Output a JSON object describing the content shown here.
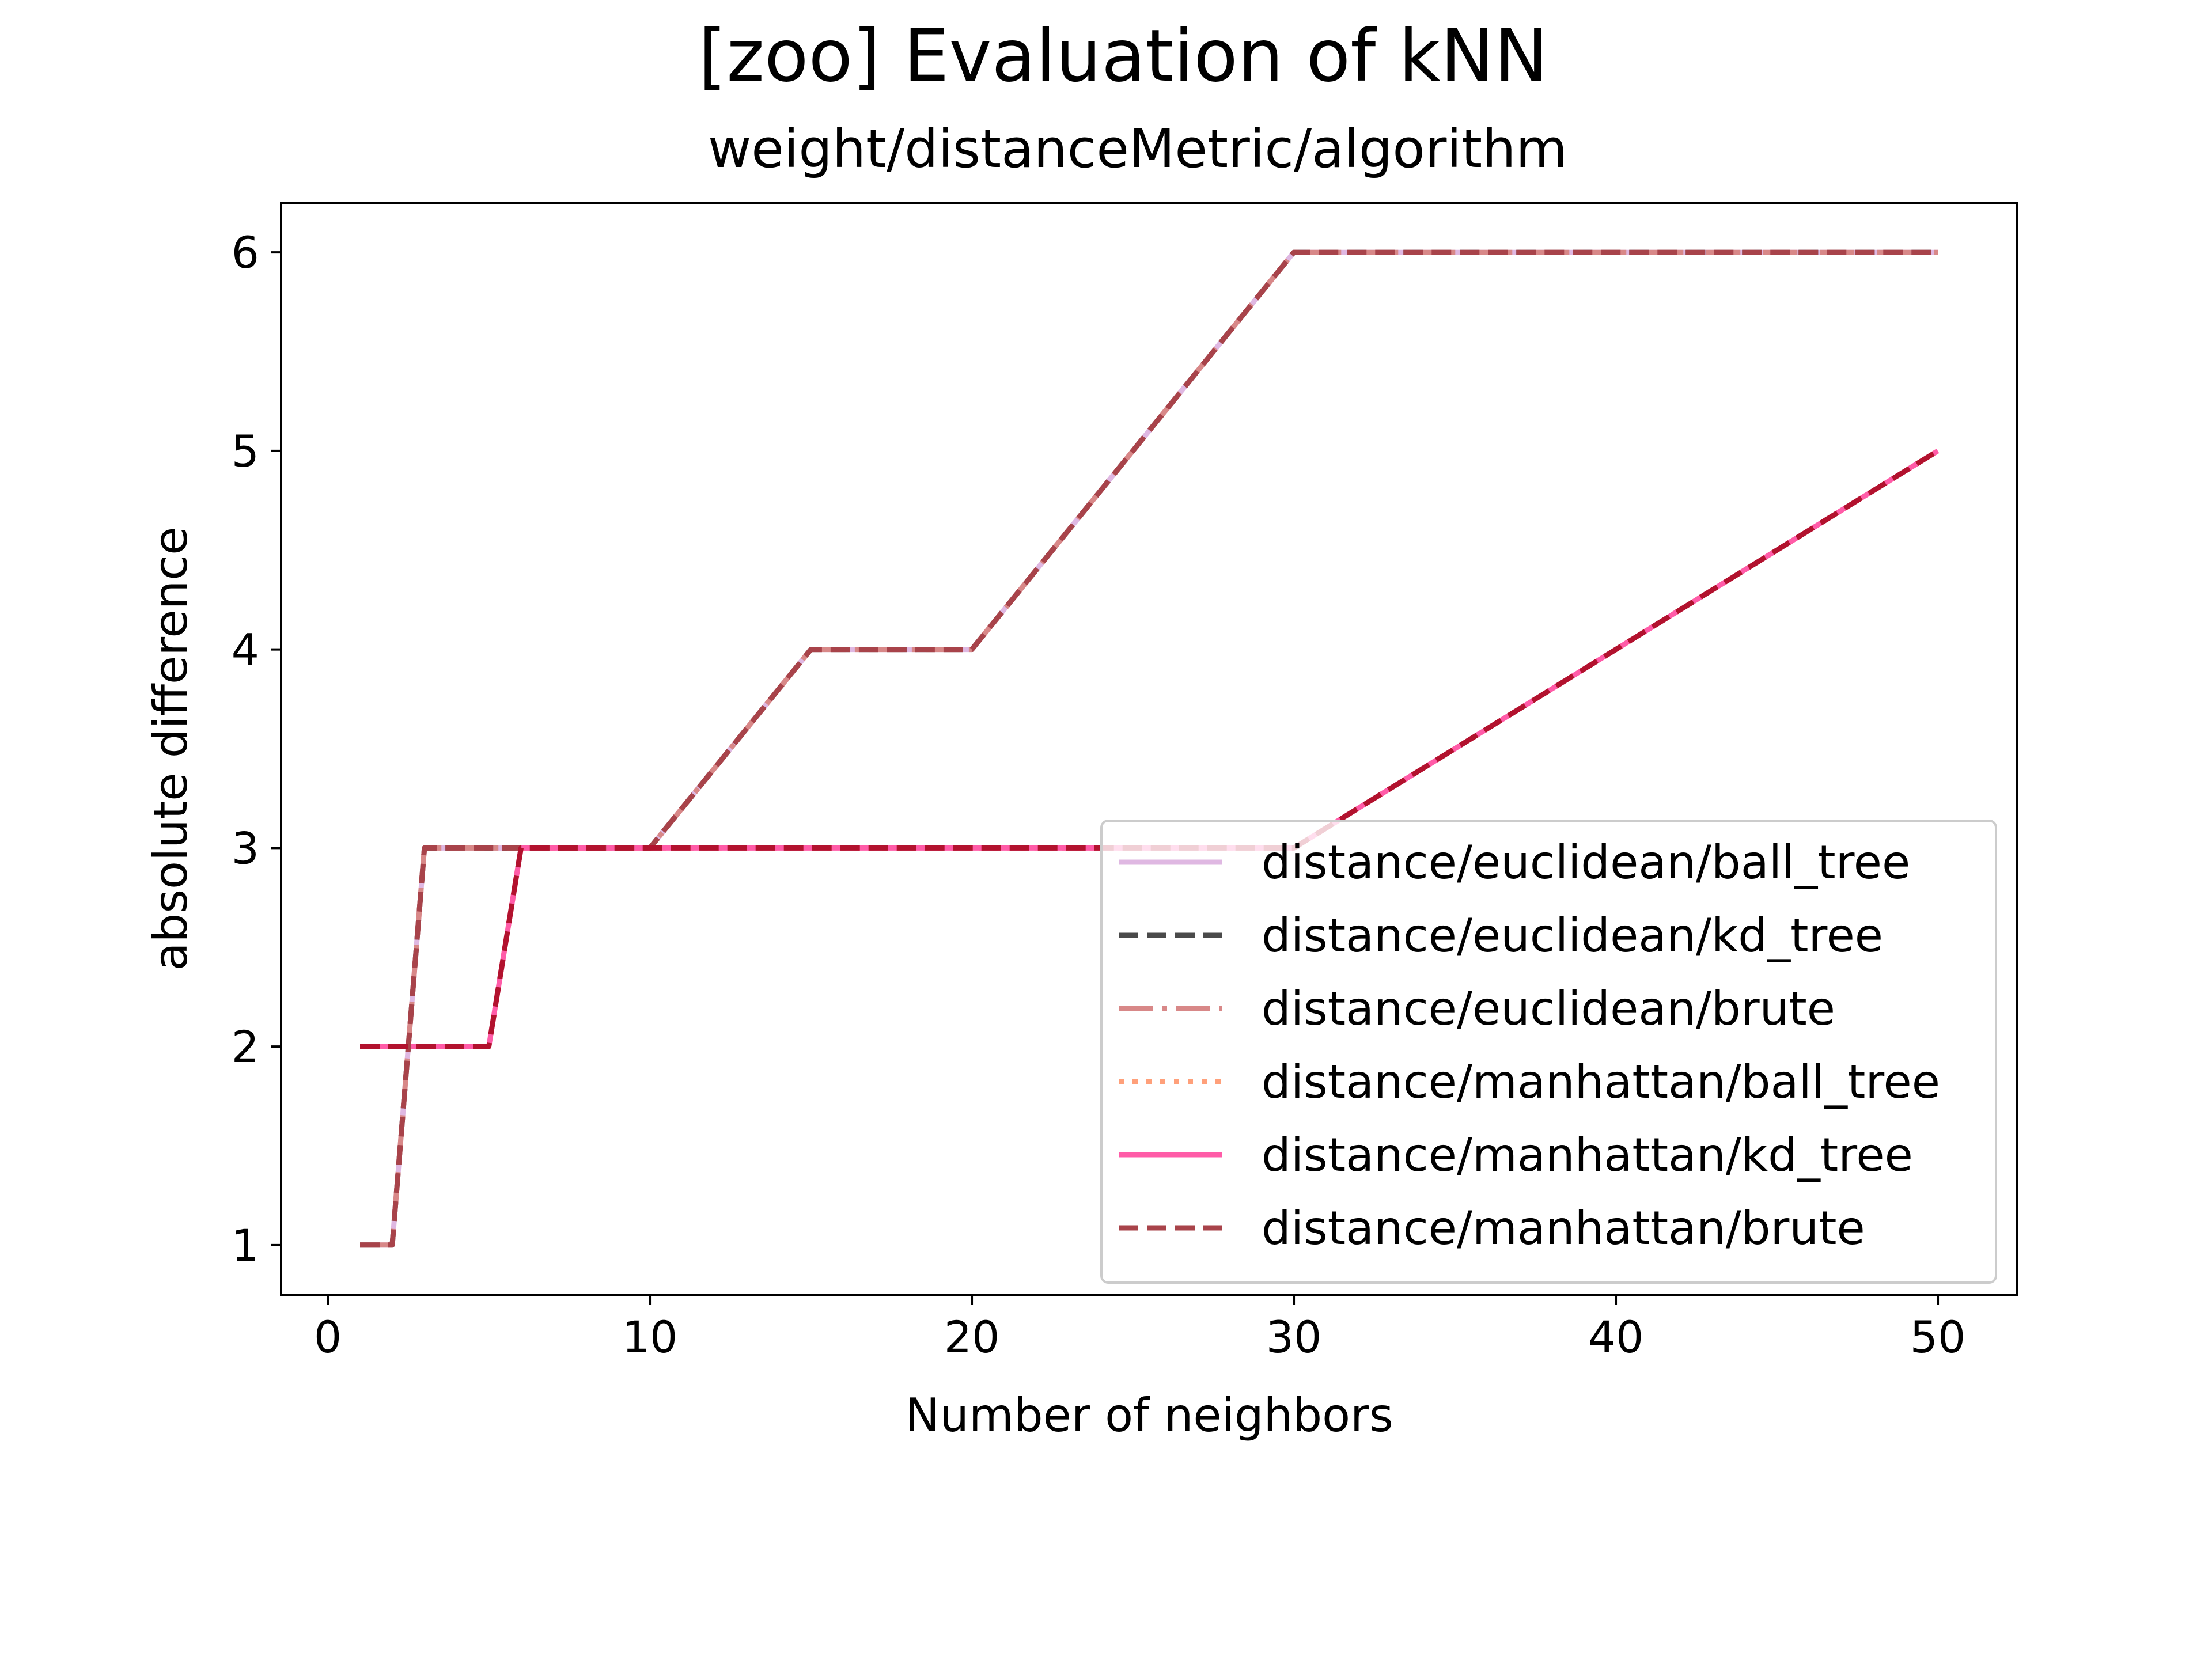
{
  "chart_data": {
    "type": "line",
    "title": "[zoo] Evaluation of kNN",
    "subtitle": "weight/distanceMetric/algorithm",
    "xlabel": "Number of neighbors",
    "ylabel": "absolute difference",
    "xlim": [
      -1.45,
      52.45
    ],
    "ylim": [
      0.75,
      6.25
    ],
    "xticks": [
      0,
      10,
      20,
      30,
      40,
      50
    ],
    "yticks": [
      1,
      2,
      3,
      4,
      5,
      6
    ],
    "grid": false,
    "legend_position": "lower-right",
    "series": [
      {
        "name": "distance/euclidean/ball_tree",
        "color": "#dfb8e2",
        "style": "solid",
        "x": [
          1,
          2,
          3,
          10,
          15,
          20,
          30,
          50
        ],
        "y": [
          1,
          1,
          3,
          3,
          4,
          4,
          6,
          6
        ]
      },
      {
        "name": "distance/euclidean/kd_tree",
        "color": "#4a4a4a",
        "style": "dashed",
        "x": [
          1,
          2,
          3,
          10,
          15,
          20,
          30,
          50
        ],
        "y": [
          1,
          1,
          3,
          3,
          4,
          4,
          6,
          6
        ]
      },
      {
        "name": "distance/euclidean/brute",
        "color": "#d88888",
        "style": "dashdot",
        "x": [
          1,
          2,
          3,
          10,
          15,
          20,
          30,
          50
        ],
        "y": [
          1,
          1,
          3,
          3,
          4,
          4,
          6,
          6
        ]
      },
      {
        "name": "distance/manhattan/ball_tree",
        "color": "#ffa07a",
        "style": "dotted",
        "x": [
          1,
          5,
          6,
          30,
          50
        ],
        "y": [
          2,
          2,
          3,
          3,
          5
        ]
      },
      {
        "name": "distance/manhattan/kd_tree",
        "color": "#ff5ca8",
        "style": "solid",
        "x": [
          1,
          5,
          6,
          30,
          50
        ],
        "y": [
          2,
          2,
          3,
          3,
          5
        ]
      },
      {
        "name": "distance/manhattan/brute",
        "color": "#a8434a",
        "style": "dashed",
        "x": [
          1,
          2,
          3,
          10,
          15,
          20,
          30,
          50
        ],
        "y": [
          1,
          1,
          3,
          3,
          4,
          4,
          6,
          6
        ]
      },
      {
        "name": "",
        "color": "#b2122e",
        "style": "dashed",
        "x": [
          1,
          5,
          6,
          30,
          50
        ],
        "y": [
          2,
          2,
          3,
          3,
          5
        ]
      }
    ]
  }
}
